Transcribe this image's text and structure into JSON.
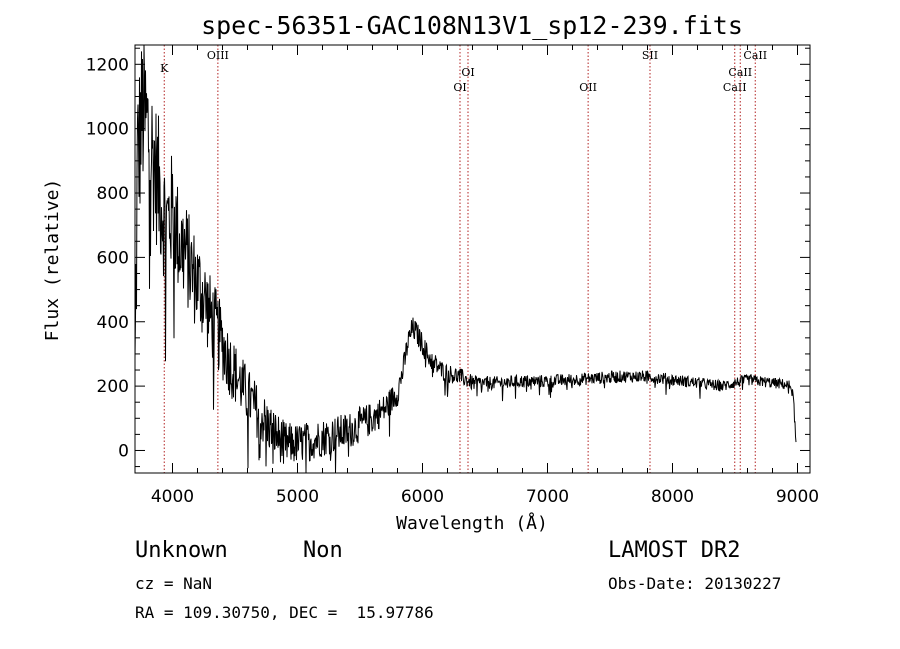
{
  "chart_data": {
    "type": "line",
    "title": "spec-56351-GAC108N13V1_sp12-239.fits",
    "xlabel": "Wavelength (Å)",
    "ylabel": "Flux (relative)",
    "xlim": [
      3700,
      9100
    ],
    "ylim": [
      -70,
      1260
    ],
    "xticks": [
      4000,
      5000,
      6000,
      7000,
      8000,
      9000
    ],
    "yticks": [
      0,
      200,
      400,
      600,
      800,
      1000,
      1200
    ],
    "grid": false,
    "line_color": "#000000",
    "marker_color": "#b22222",
    "spectrum_anchors": {
      "x": [
        3700,
        3720,
        3760,
        3800,
        3850,
        3900,
        3950,
        4000,
        4050,
        4100,
        4150,
        4200,
        4250,
        4300,
        4350,
        4400,
        4450,
        4500,
        4600,
        4700,
        4800,
        4900,
        5000,
        5100,
        5200,
        5300,
        5400,
        5500,
        5600,
        5700,
        5800,
        5850,
        5880,
        5920,
        5960,
        6000,
        6050,
        6100,
        6150,
        6200,
        6300,
        6400,
        6600,
        6800,
        7000,
        7200,
        7400,
        7600,
        7800,
        8000,
        8200,
        8400,
        8500,
        8600,
        8700,
        8800,
        8900,
        8950,
        8970,
        8990
      ],
      "y": [
        200,
        900,
        1050,
        1000,
        900,
        800,
        700,
        750,
        650,
        620,
        560,
        520,
        480,
        420,
        380,
        330,
        280,
        240,
        170,
        110,
        60,
        20,
        20,
        30,
        40,
        50,
        60,
        80,
        100,
        130,
        180,
        260,
        330,
        380,
        360,
        330,
        290,
        270,
        250,
        240,
        230,
        210,
        210,
        215,
        215,
        220,
        225,
        230,
        230,
        220,
        210,
        200,
        210,
        220,
        215,
        210,
        205,
        200,
        150,
        0
      ]
    },
    "spectrum_noise_amplitude": {
      "x": [
        3700,
        4000,
        4500,
        5000,
        5500,
        5800,
        6000,
        6500,
        9000
      ],
      "y": [
        200,
        130,
        70,
        45,
        40,
        30,
        25,
        15,
        12
      ]
    },
    "line_markers": [
      {
        "label": "K",
        "wavelength": 3934
      },
      {
        "label": "OIII",
        "wavelength": 4363
      },
      {
        "label": "OI",
        "wavelength": 6300
      },
      {
        "label": "OI",
        "wavelength": 6364
      },
      {
        "label": "OII",
        "wavelength": 7325
      },
      {
        "label": "SII",
        "wavelength": 7820
      },
      {
        "label": "CaII",
        "wavelength": 8498
      },
      {
        "label": "CaII",
        "wavelength": 8542
      },
      {
        "label": "CaII",
        "wavelength": 8662
      }
    ]
  },
  "info": {
    "class": "Unknown",
    "subclass": "Non",
    "survey": "LAMOST DR2",
    "cz": "cz = NaN",
    "obs_date": "Obs-Date: 20130227",
    "ra_dec": "RA = 109.30750, DEC =  15.97786"
  }
}
